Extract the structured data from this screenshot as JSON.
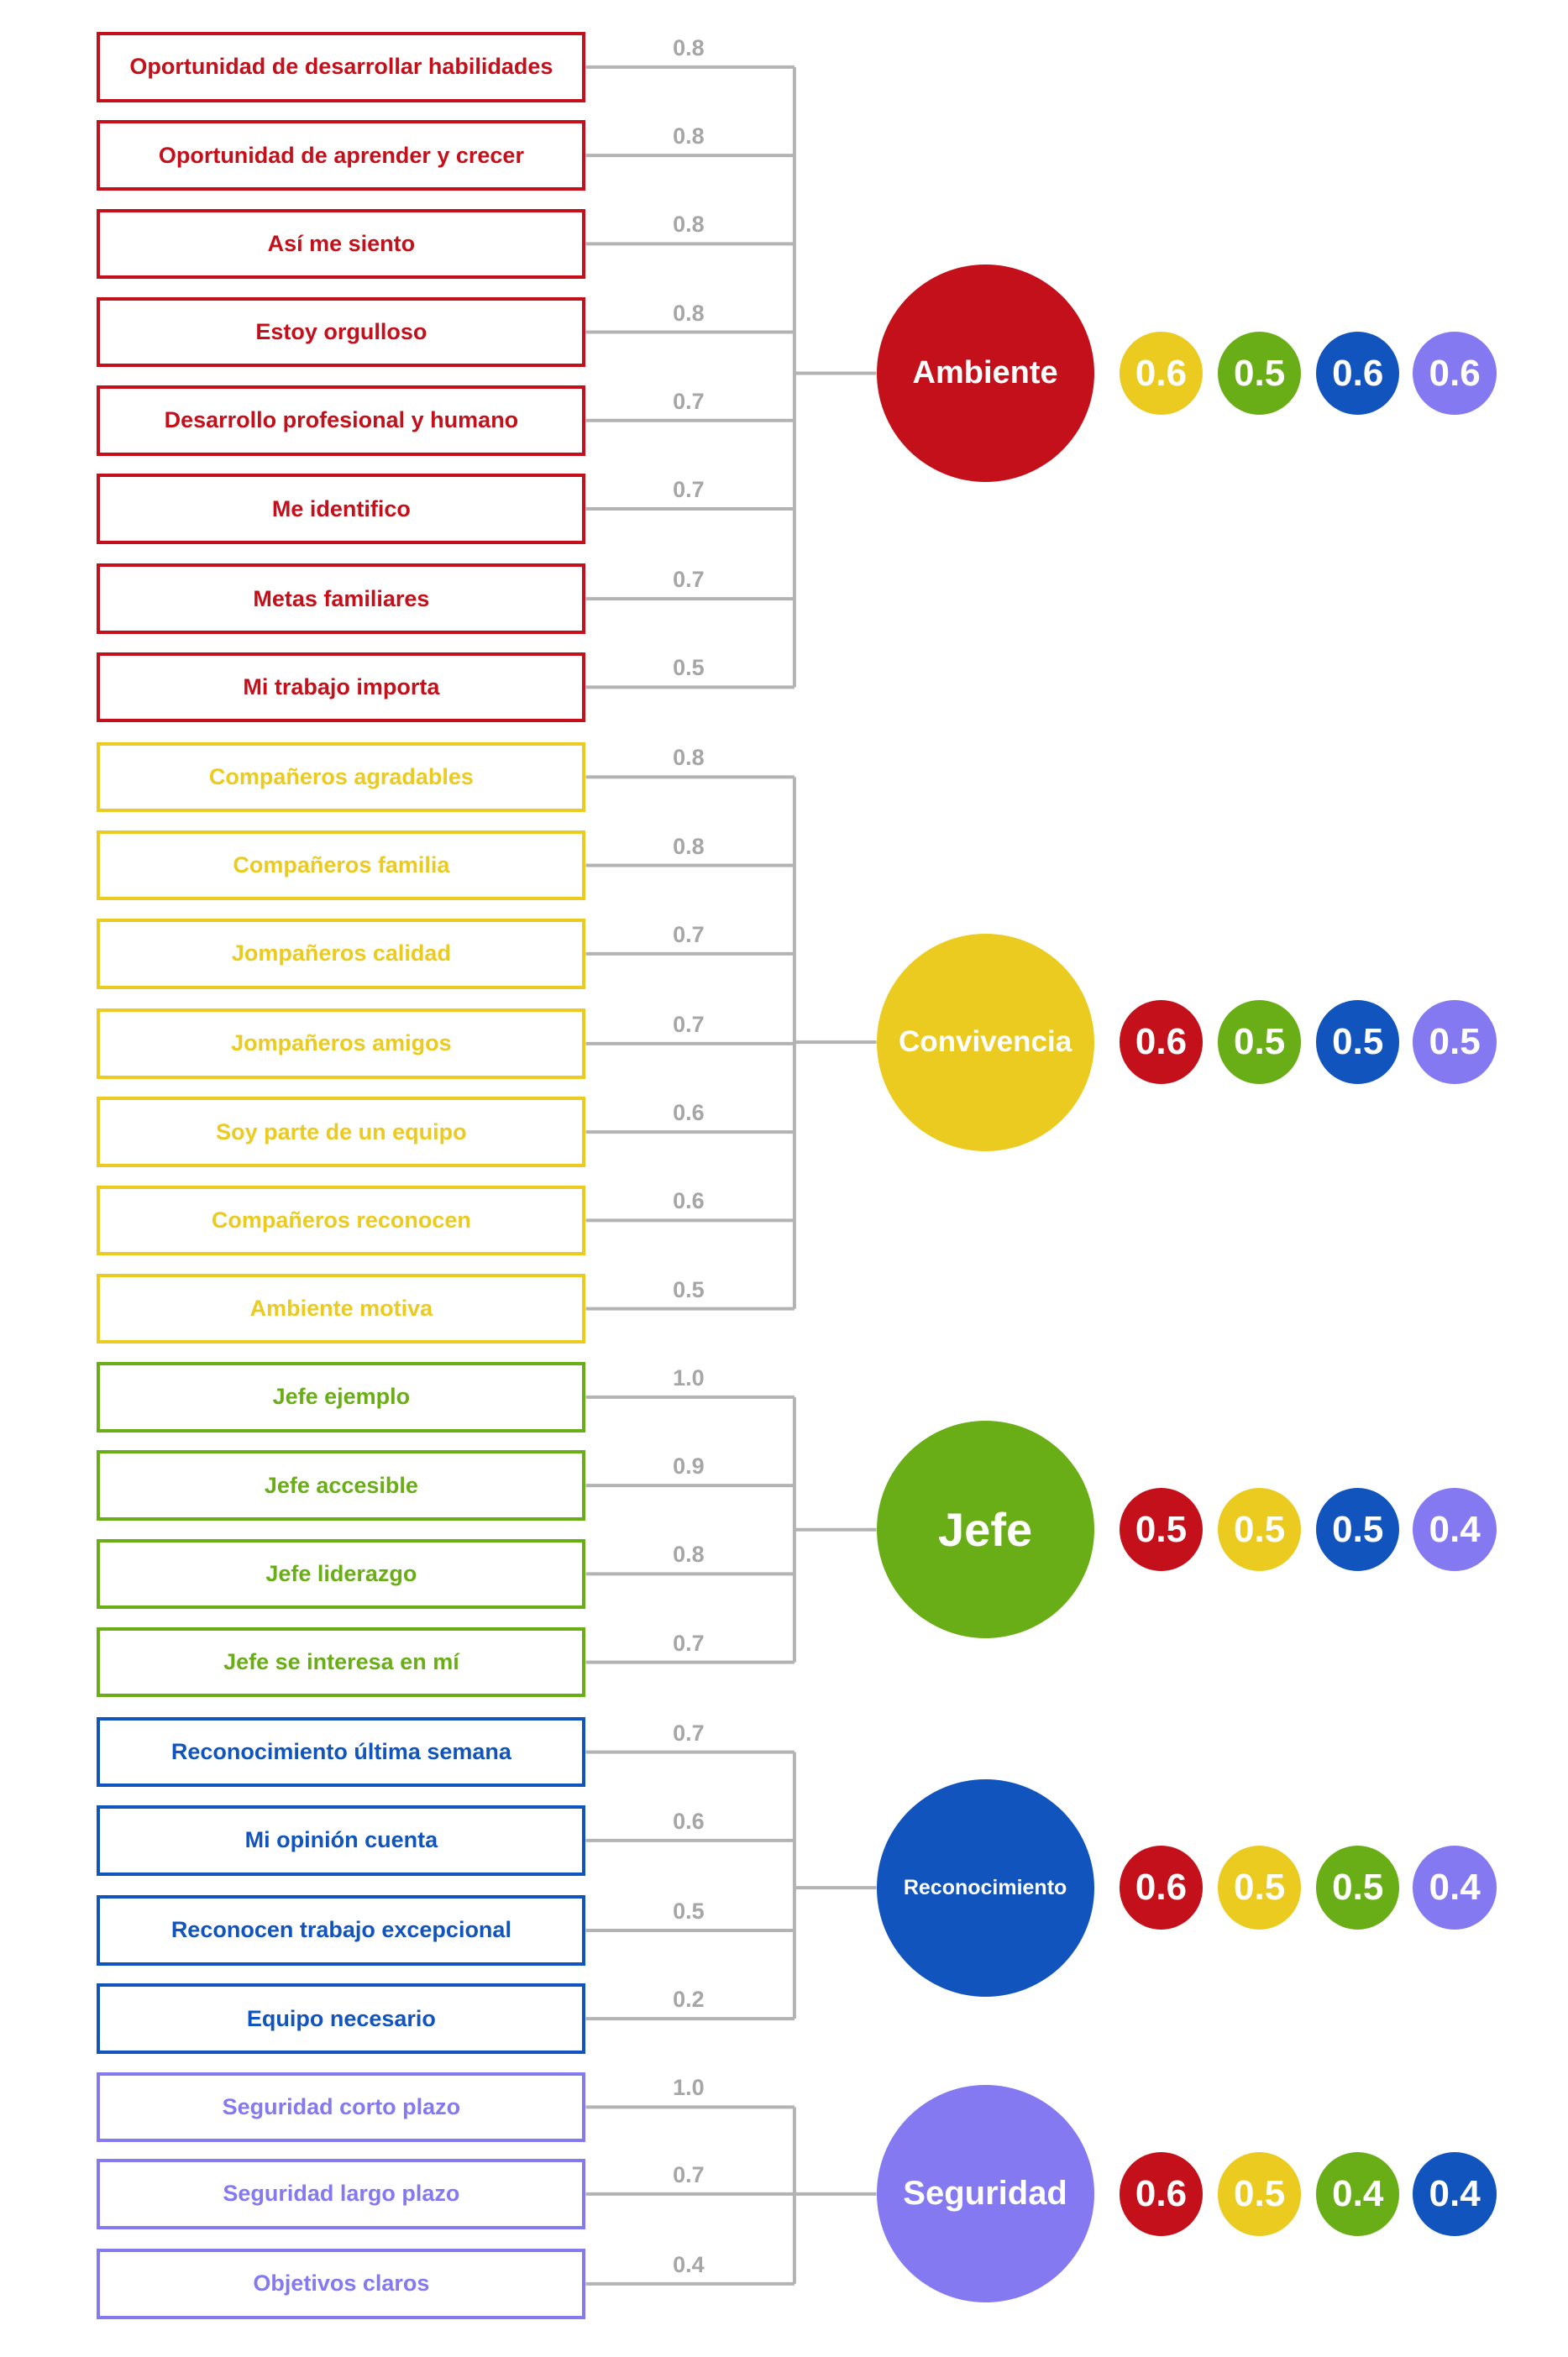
{
  "colors": {
    "red": "#c4101a",
    "yellow": "#ebcb20",
    "green": "#6aae17",
    "blue": "#1254be",
    "purple": "#8479f0",
    "connector": "#b3b3b3",
    "weight_text": "#a6a6a6"
  },
  "groups": [
    {
      "hub_label": "Ambiente",
      "color": "red",
      "items": [
        {
          "label": "Oportunidad de desarrollar habilidades",
          "weight": "0.8"
        },
        {
          "label": "Oportunidad de aprender y crecer",
          "weight": "0.8"
        },
        {
          "label": "Así me siento",
          "weight": "0.8"
        },
        {
          "label": "Estoy orgulloso",
          "weight": "0.8"
        },
        {
          "label": "Desarrollo profesional y humano",
          "weight": "0.7"
        },
        {
          "label": "Me identifico",
          "weight": "0.7"
        },
        {
          "label": "Metas familiares",
          "weight": "0.7"
        },
        {
          "label": "Mi trabajo importa",
          "weight": "0.5"
        }
      ],
      "scores": [
        {
          "value": "0.6",
          "color": "yellow"
        },
        {
          "value": "0.5",
          "color": "green"
        },
        {
          "value": "0.6",
          "color": "blue"
        },
        {
          "value": "0.6",
          "color": "purple"
        }
      ]
    },
    {
      "hub_label": "Convivencia",
      "color": "yellow",
      "items": [
        {
          "label": "Compañeros agradables",
          "weight": "0.8"
        },
        {
          "label": "Compañeros familia",
          "weight": "0.8"
        },
        {
          "label": "Jompañeros calidad",
          "weight": "0.7"
        },
        {
          "label": "Jompañeros amigos",
          "weight": "0.7"
        },
        {
          "label": "Soy parte de un equipo",
          "weight": "0.6"
        },
        {
          "label": "Compañeros reconocen",
          "weight": "0.6"
        },
        {
          "label": "Ambiente motiva",
          "weight": "0.5"
        }
      ],
      "scores": [
        {
          "value": "0.6",
          "color": "red"
        },
        {
          "value": "0.5",
          "color": "green"
        },
        {
          "value": "0.5",
          "color": "blue"
        },
        {
          "value": "0.5",
          "color": "purple"
        }
      ]
    },
    {
      "hub_label": "Jefe",
      "color": "green",
      "items": [
        {
          "label": "Jefe ejemplo",
          "weight": "1.0"
        },
        {
          "label": "Jefe accesible",
          "weight": "0.9"
        },
        {
          "label": "Jefe liderazgo",
          "weight": "0.8"
        },
        {
          "label": "Jefe se interesa en mí",
          "weight": "0.7"
        }
      ],
      "scores": [
        {
          "value": "0.5",
          "color": "red"
        },
        {
          "value": "0.5",
          "color": "yellow"
        },
        {
          "value": "0.5",
          "color": "blue"
        },
        {
          "value": "0.4",
          "color": "purple"
        }
      ]
    },
    {
      "hub_label": "Reconocimiento",
      "color": "blue",
      "items": [
        {
          "label": "Reconocimiento última semana",
          "weight": "0.7"
        },
        {
          "label": "Mi opinión cuenta",
          "weight": "0.6"
        },
        {
          "label": "Reconocen trabajo excepcional",
          "weight": "0.5"
        },
        {
          "label": "Equipo necesario",
          "weight": "0.2"
        }
      ],
      "scores": [
        {
          "value": "0.6",
          "color": "red"
        },
        {
          "value": "0.5",
          "color": "yellow"
        },
        {
          "value": "0.5",
          "color": "green"
        },
        {
          "value": "0.4",
          "color": "purple"
        }
      ]
    },
    {
      "hub_label": "Seguridad",
      "color": "purple",
      "items": [
        {
          "label": "Seguridad corto plazo",
          "weight": "1.0"
        },
        {
          "label": "Seguridad largo plazo",
          "weight": "0.7"
        },
        {
          "label": "Objetivos claros",
          "weight": "0.4"
        }
      ],
      "scores": [
        {
          "value": "0.6",
          "color": "red"
        },
        {
          "value": "0.5",
          "color": "yellow"
        },
        {
          "value": "0.4",
          "color": "green"
        },
        {
          "value": "0.4",
          "color": "blue"
        }
      ]
    }
  ]
}
